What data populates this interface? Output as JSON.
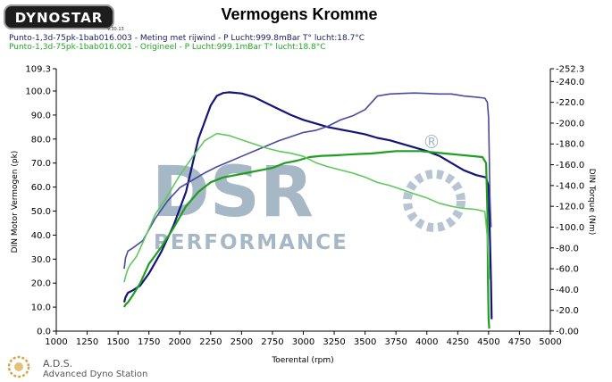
{
  "header": {
    "logo_text": "DYNOSTAR",
    "logo_sub": "V.30.13",
    "title": "Vermogens Kromme"
  },
  "runs": {
    "run1": "Punto-1,3d-75pk-1bab016.003 - Meting met rijwind  - P Lucht:999.8mBar T° lucht:18.7°C",
    "run2": "Punto-1,3d-75pk-1bab016.001 - Origineel  - P Lucht:999.1mBar T° lucht:18.8°C"
  },
  "footer": {
    "ads_name": "A.D.S.",
    "ads_sub": "Advanced Dyno Station"
  },
  "watermark": {
    "main": "DSR",
    "sub": "PERFORMANCE",
    "mark": "®"
  },
  "colors": {
    "run1_power": "#14147a",
    "run1_torque": "#4a4a9e",
    "run2_power": "#1f9e1f",
    "run2_torque": "#5ec95e",
    "watermark": "#5f7d98"
  },
  "chart_data": {
    "type": "line",
    "xlabel": "Toerental (rpm)",
    "ylabel_left": "DIN Motor Vermogen (pk)",
    "ylabel_right": "DIN Torque (Nm)",
    "x_ticks": [
      "1000",
      "1250",
      "1500",
      "1750",
      "2000",
      "2250",
      "2500",
      "2750",
      "3000",
      "3250",
      "3500",
      "3750",
      "4000",
      "4250",
      "4500",
      "4750",
      "5000"
    ],
    "left_ticks": [
      "0.0",
      "10.0",
      "20.0",
      "30.0",
      "40.0",
      "50.0",
      "60.0",
      "70.0",
      "80.0",
      "90.0",
      "100.0",
      "109.3"
    ],
    "right_ticks": [
      "0.00",
      "20.0",
      "40.0",
      "60.0",
      "80.0",
      "100.0",
      "120.0",
      "140.0",
      "160.0",
      "180.0",
      "200.0",
      "220.0",
      "240.0",
      "252.3"
    ],
    "xlim": [
      1000,
      5000
    ],
    "ylim_left": [
      0,
      109.3
    ],
    "ylim_right": [
      0,
      252.3
    ],
    "grid": false,
    "series": [
      {
        "axis": "left",
        "line_width": 2.2,
        "points": [
          [
            1550,
            12
          ],
          [
            1560,
            14
          ],
          [
            1580,
            16
          ],
          [
            1620,
            17
          ],
          [
            1680,
            19
          ],
          [
            1750,
            24
          ],
          [
            1850,
            33
          ],
          [
            1950,
            44
          ],
          [
            2050,
            58
          ],
          [
            2150,
            80
          ],
          [
            2250,
            94
          ],
          [
            2300,
            98
          ],
          [
            2350,
            99.2
          ],
          [
            2400,
            99.5
          ],
          [
            2500,
            99
          ],
          [
            2600,
            97.5
          ],
          [
            2700,
            95
          ],
          [
            2800,
            92.5
          ],
          [
            2900,
            90
          ],
          [
            3000,
            88
          ],
          [
            3100,
            86.5
          ],
          [
            3200,
            85
          ],
          [
            3300,
            84
          ],
          [
            3400,
            83
          ],
          [
            3500,
            82
          ],
          [
            3600,
            80.5
          ],
          [
            3700,
            79.5
          ],
          [
            3800,
            78
          ],
          [
            3900,
            76.5
          ],
          [
            4000,
            75
          ],
          [
            4100,
            73
          ],
          [
            4200,
            70
          ],
          [
            4300,
            67
          ],
          [
            4400,
            65
          ],
          [
            4480,
            64
          ],
          [
            4500,
            60
          ],
          [
            4510,
            40
          ],
          [
            4520,
            20
          ],
          [
            4525,
            5
          ]
        ]
      },
      {
        "axis": "right",
        "line_width": 1.6,
        "points": [
          [
            1550,
            60
          ],
          [
            1560,
            70
          ],
          [
            1580,
            77
          ],
          [
            1620,
            80
          ],
          [
            1700,
            87
          ],
          [
            1800,
            108
          ],
          [
            1900,
            125
          ],
          [
            2000,
            138
          ],
          [
            2100,
            145
          ],
          [
            2200,
            152
          ],
          [
            2300,
            158
          ],
          [
            2400,
            163
          ],
          [
            2500,
            168
          ],
          [
            2600,
            173
          ],
          [
            2700,
            178
          ],
          [
            2800,
            183
          ],
          [
            2900,
            187
          ],
          [
            3000,
            191
          ],
          [
            3100,
            193
          ],
          [
            3200,
            197
          ],
          [
            3300,
            203
          ],
          [
            3400,
            207
          ],
          [
            3500,
            213
          ],
          [
            3600,
            226
          ],
          [
            3700,
            228
          ],
          [
            3800,
            228.5
          ],
          [
            3900,
            229
          ],
          [
            4000,
            228.5
          ],
          [
            4100,
            228
          ],
          [
            4200,
            228
          ],
          [
            4300,
            226
          ],
          [
            4400,
            225
          ],
          [
            4470,
            224
          ],
          [
            4490,
            220
          ],
          [
            4500,
            205
          ],
          [
            4505,
            170
          ],
          [
            4510,
            130
          ],
          [
            4520,
            100
          ]
        ]
      },
      {
        "axis": "left",
        "line_width": 2.2,
        "points": [
          [
            1550,
            10
          ],
          [
            1560,
            11
          ],
          [
            1580,
            12
          ],
          [
            1620,
            15
          ],
          [
            1680,
            20
          ],
          [
            1750,
            28
          ],
          [
            1850,
            35
          ],
          [
            1950,
            43
          ],
          [
            2050,
            52
          ],
          [
            2150,
            58
          ],
          [
            2250,
            62
          ],
          [
            2350,
            64
          ],
          [
            2450,
            65
          ],
          [
            2550,
            66
          ],
          [
            2650,
            67
          ],
          [
            2750,
            68
          ],
          [
            2850,
            70
          ],
          [
            2950,
            71
          ],
          [
            3050,
            72.5
          ],
          [
            3150,
            73
          ],
          [
            3250,
            73.2
          ],
          [
            3350,
            73.5
          ],
          [
            3450,
            73.8
          ],
          [
            3550,
            74
          ],
          [
            3650,
            74.5
          ],
          [
            3750,
            75
          ],
          [
            3850,
            75
          ],
          [
            3950,
            75
          ],
          [
            4050,
            74.5
          ],
          [
            4150,
            74
          ],
          [
            4250,
            73.5
          ],
          [
            4350,
            73
          ],
          [
            4450,
            72.5
          ],
          [
            4480,
            70
          ],
          [
            4490,
            50
          ],
          [
            4495,
            20
          ],
          [
            4500,
            5
          ],
          [
            4505,
            1
          ]
        ]
      },
      {
        "axis": "right",
        "line_width": 1.6,
        "points": [
          [
            1550,
            47
          ],
          [
            1560,
            52
          ],
          [
            1580,
            60
          ],
          [
            1600,
            64
          ],
          [
            1650,
            72
          ],
          [
            1700,
            85
          ],
          [
            1800,
            112
          ],
          [
            1900,
            130
          ],
          [
            2000,
            150
          ],
          [
            2100,
            167
          ],
          [
            2200,
            183
          ],
          [
            2300,
            190
          ],
          [
            2400,
            188
          ],
          [
            2500,
            184
          ],
          [
            2600,
            180
          ],
          [
            2700,
            176
          ],
          [
            2800,
            173
          ],
          [
            2900,
            171
          ],
          [
            3000,
            168
          ],
          [
            3100,
            162
          ],
          [
            3200,
            158
          ],
          [
            3300,
            155
          ],
          [
            3400,
            152
          ],
          [
            3500,
            148
          ],
          [
            3600,
            143
          ],
          [
            3700,
            140
          ],
          [
            3800,
            136
          ],
          [
            3900,
            132
          ],
          [
            4000,
            128
          ],
          [
            4100,
            123
          ],
          [
            4200,
            120
          ],
          [
            4300,
            118
          ],
          [
            4400,
            117
          ],
          [
            4470,
            115
          ],
          [
            4490,
            90
          ],
          [
            4500,
            70
          ],
          [
            4505,
            50
          ]
        ]
      }
    ]
  }
}
